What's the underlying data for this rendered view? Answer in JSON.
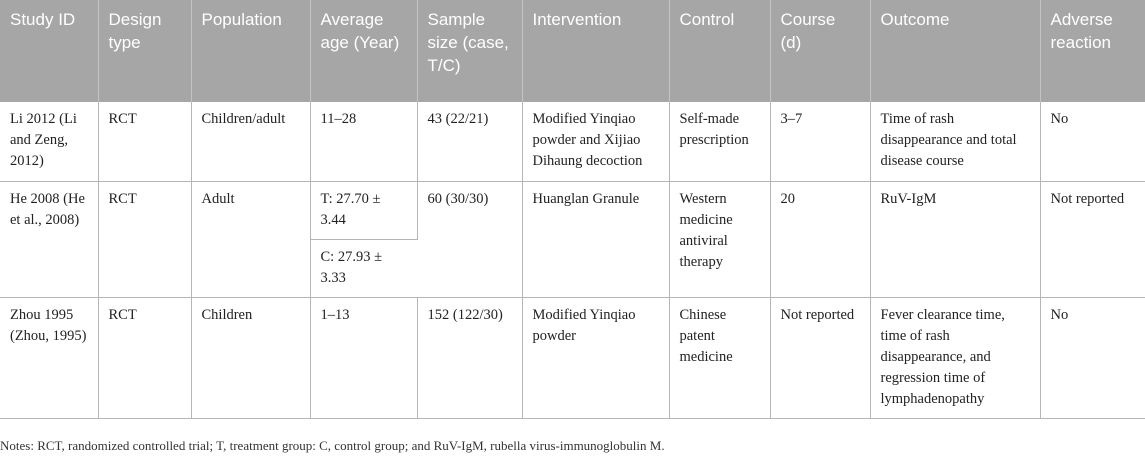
{
  "table": {
    "headers": [
      "Study ID",
      "Design type",
      "Population",
      "Average age (Year)",
      "Sample size (case, T/C)",
      "Intervention",
      "Control",
      "Course (d)",
      "Outcome",
      "Adverse reaction"
    ],
    "rows": [
      {
        "study_id": "Li 2012 (Li and Zeng, 2012)",
        "design": "RCT",
        "population": "Children/adult",
        "age": "11–28",
        "sample": "43 (22/21)",
        "intervention": "Modified Yinqiao powder and Xijiao Dihaung decoction",
        "control": "Self-made prescription",
        "course": "3–7",
        "outcome": "Time of rash disappearance and total disease course",
        "adverse": "No"
      },
      {
        "study_id": "He 2008 (He et al., 2008)",
        "design": "RCT",
        "population": "Adult",
        "age_t": "T: 27.70 ± 3.44",
        "age_c": "C: 27.93 ± 3.33",
        "sample": "60 (30/30)",
        "intervention": "Huanglan Granule",
        "control": "Western medicine antiviral therapy",
        "course": "20",
        "outcome": "RuV-IgM",
        "adverse": "Not reported"
      },
      {
        "study_id": "Zhou 1995 (Zhou, 1995)",
        "design": "RCT",
        "population": "Children",
        "age": "1–13",
        "sample": "152 (122/30)",
        "intervention": "Modified Yinqiao powder",
        "control": "Chinese patent medicine",
        "course": "Not reported",
        "outcome": "Fever clearance time, time of rash disappearance, and regression time of lymphadenopathy",
        "adverse": "No"
      }
    ]
  },
  "notes": "Notes: RCT, randomized controlled trial; T, treatment group: C, control group; and RuV-IgM, rubella virus-immunoglobulin M."
}
